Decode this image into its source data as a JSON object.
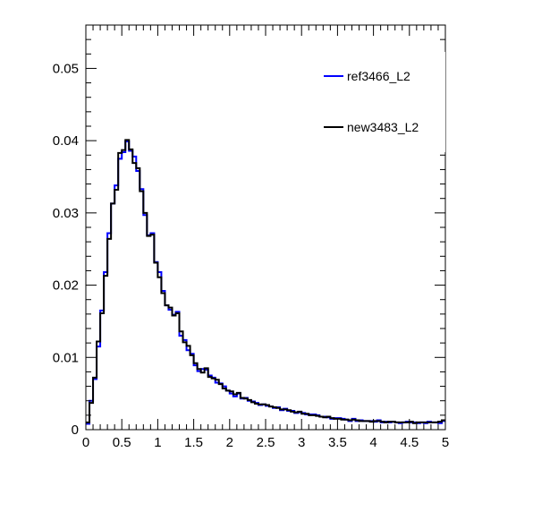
{
  "chart_data": {
    "type": "line",
    "style": "step-histogram",
    "title": "",
    "xlabel": "",
    "ylabel": "",
    "xlim": [
      0,
      5
    ],
    "ylim": [
      0,
      0.056
    ],
    "grid": false,
    "legend_position": "top-right",
    "x_ticks": [
      0,
      0.5,
      1,
      1.5,
      2,
      2.5,
      3,
      3.5,
      4,
      4.5,
      5
    ],
    "x_tick_labels": [
      "0",
      "0.5",
      "1",
      "1.5",
      "2",
      "2.5",
      "3",
      "3.5",
      "4",
      "4.5",
      "5"
    ],
    "y_ticks": [
      0,
      0.01,
      0.02,
      0.03,
      0.04,
      0.05
    ],
    "y_tick_labels": [
      "0",
      "0.01",
      "0.02",
      "0.03",
      "0.04",
      "0.05"
    ],
    "bin_edges_start": 0,
    "bin_width": 0.05,
    "series": [
      {
        "name": "ref3466_L2",
        "color": "#0000ff",
        "values": [
          0.0008,
          0.004,
          0.007,
          0.0115,
          0.0165,
          0.0218,
          0.0272,
          0.0313,
          0.0338,
          0.0375,
          0.0384,
          0.0399,
          0.0386,
          0.0378,
          0.0358,
          0.0333,
          0.0297,
          0.0269,
          0.0272,
          0.0232,
          0.0218,
          0.0192,
          0.0172,
          0.0166,
          0.0159,
          0.0163,
          0.013,
          0.0124,
          0.011,
          0.0105,
          0.0089,
          0.0081,
          0.0084,
          0.0083,
          0.0075,
          0.0072,
          0.0065,
          0.0064,
          0.006,
          0.0054,
          0.005,
          0.0046,
          0.005,
          0.0043,
          0.0044,
          0.004,
          0.0039,
          0.0037,
          0.0034,
          0.0035,
          0.0033,
          0.0032,
          0.003,
          0.0031,
          0.0027,
          0.0029,
          0.0026,
          0.0026,
          0.0023,
          0.0024,
          0.0023,
          0.0021,
          0.0021,
          0.0021,
          0.002,
          0.0018,
          0.0018,
          0.0017,
          0.0015,
          0.0016,
          0.0016,
          0.0015,
          0.0014,
          0.0012,
          0.0015,
          0.0012,
          0.0013,
          0.0012,
          0.0012,
          0.0012,
          0.0011,
          0.0013,
          0.001,
          0.0011,
          0.001,
          0.0011,
          0.001,
          0.0009,
          0.001,
          0.0011,
          0.001,
          0.001,
          0.0009,
          0.001,
          0.0009,
          0.0011,
          0.001,
          0.001,
          0.0009,
          0.0012
        ]
      },
      {
        "name": "new3483_L2",
        "color": "#000000",
        "values": [
          0.001,
          0.0037,
          0.0072,
          0.0122,
          0.0161,
          0.0213,
          0.0264,
          0.0313,
          0.0332,
          0.0383,
          0.0387,
          0.0401,
          0.0388,
          0.0369,
          0.0362,
          0.033,
          0.03,
          0.0268,
          0.027,
          0.0231,
          0.0211,
          0.0189,
          0.0172,
          0.0169,
          0.0158,
          0.0161,
          0.0136,
          0.0121,
          0.0116,
          0.0103,
          0.0092,
          0.0084,
          0.0079,
          0.0085,
          0.0073,
          0.0071,
          0.0069,
          0.0063,
          0.0057,
          0.0054,
          0.0053,
          0.0049,
          0.0051,
          0.0044,
          0.0043,
          0.0041,
          0.0038,
          0.0036,
          0.0035,
          0.0035,
          0.0034,
          0.0032,
          0.0031,
          0.003,
          0.0028,
          0.0028,
          0.0027,
          0.0025,
          0.0024,
          0.0025,
          0.0022,
          0.0022,
          0.002,
          0.002,
          0.0019,
          0.0018,
          0.0017,
          0.0018,
          0.0016,
          0.0015,
          0.0015,
          0.0014,
          0.0014,
          0.0013,
          0.0014,
          0.0013,
          0.0012,
          0.0012,
          0.0012,
          0.0011,
          0.0012,
          0.0012,
          0.0011,
          0.001,
          0.0011,
          0.0011,
          0.001,
          0.001,
          0.001,
          0.001,
          0.0011,
          0.0009,
          0.001,
          0.001,
          0.001,
          0.001,
          0.001,
          0.001,
          0.0011,
          0.0013
        ]
      }
    ]
  }
}
